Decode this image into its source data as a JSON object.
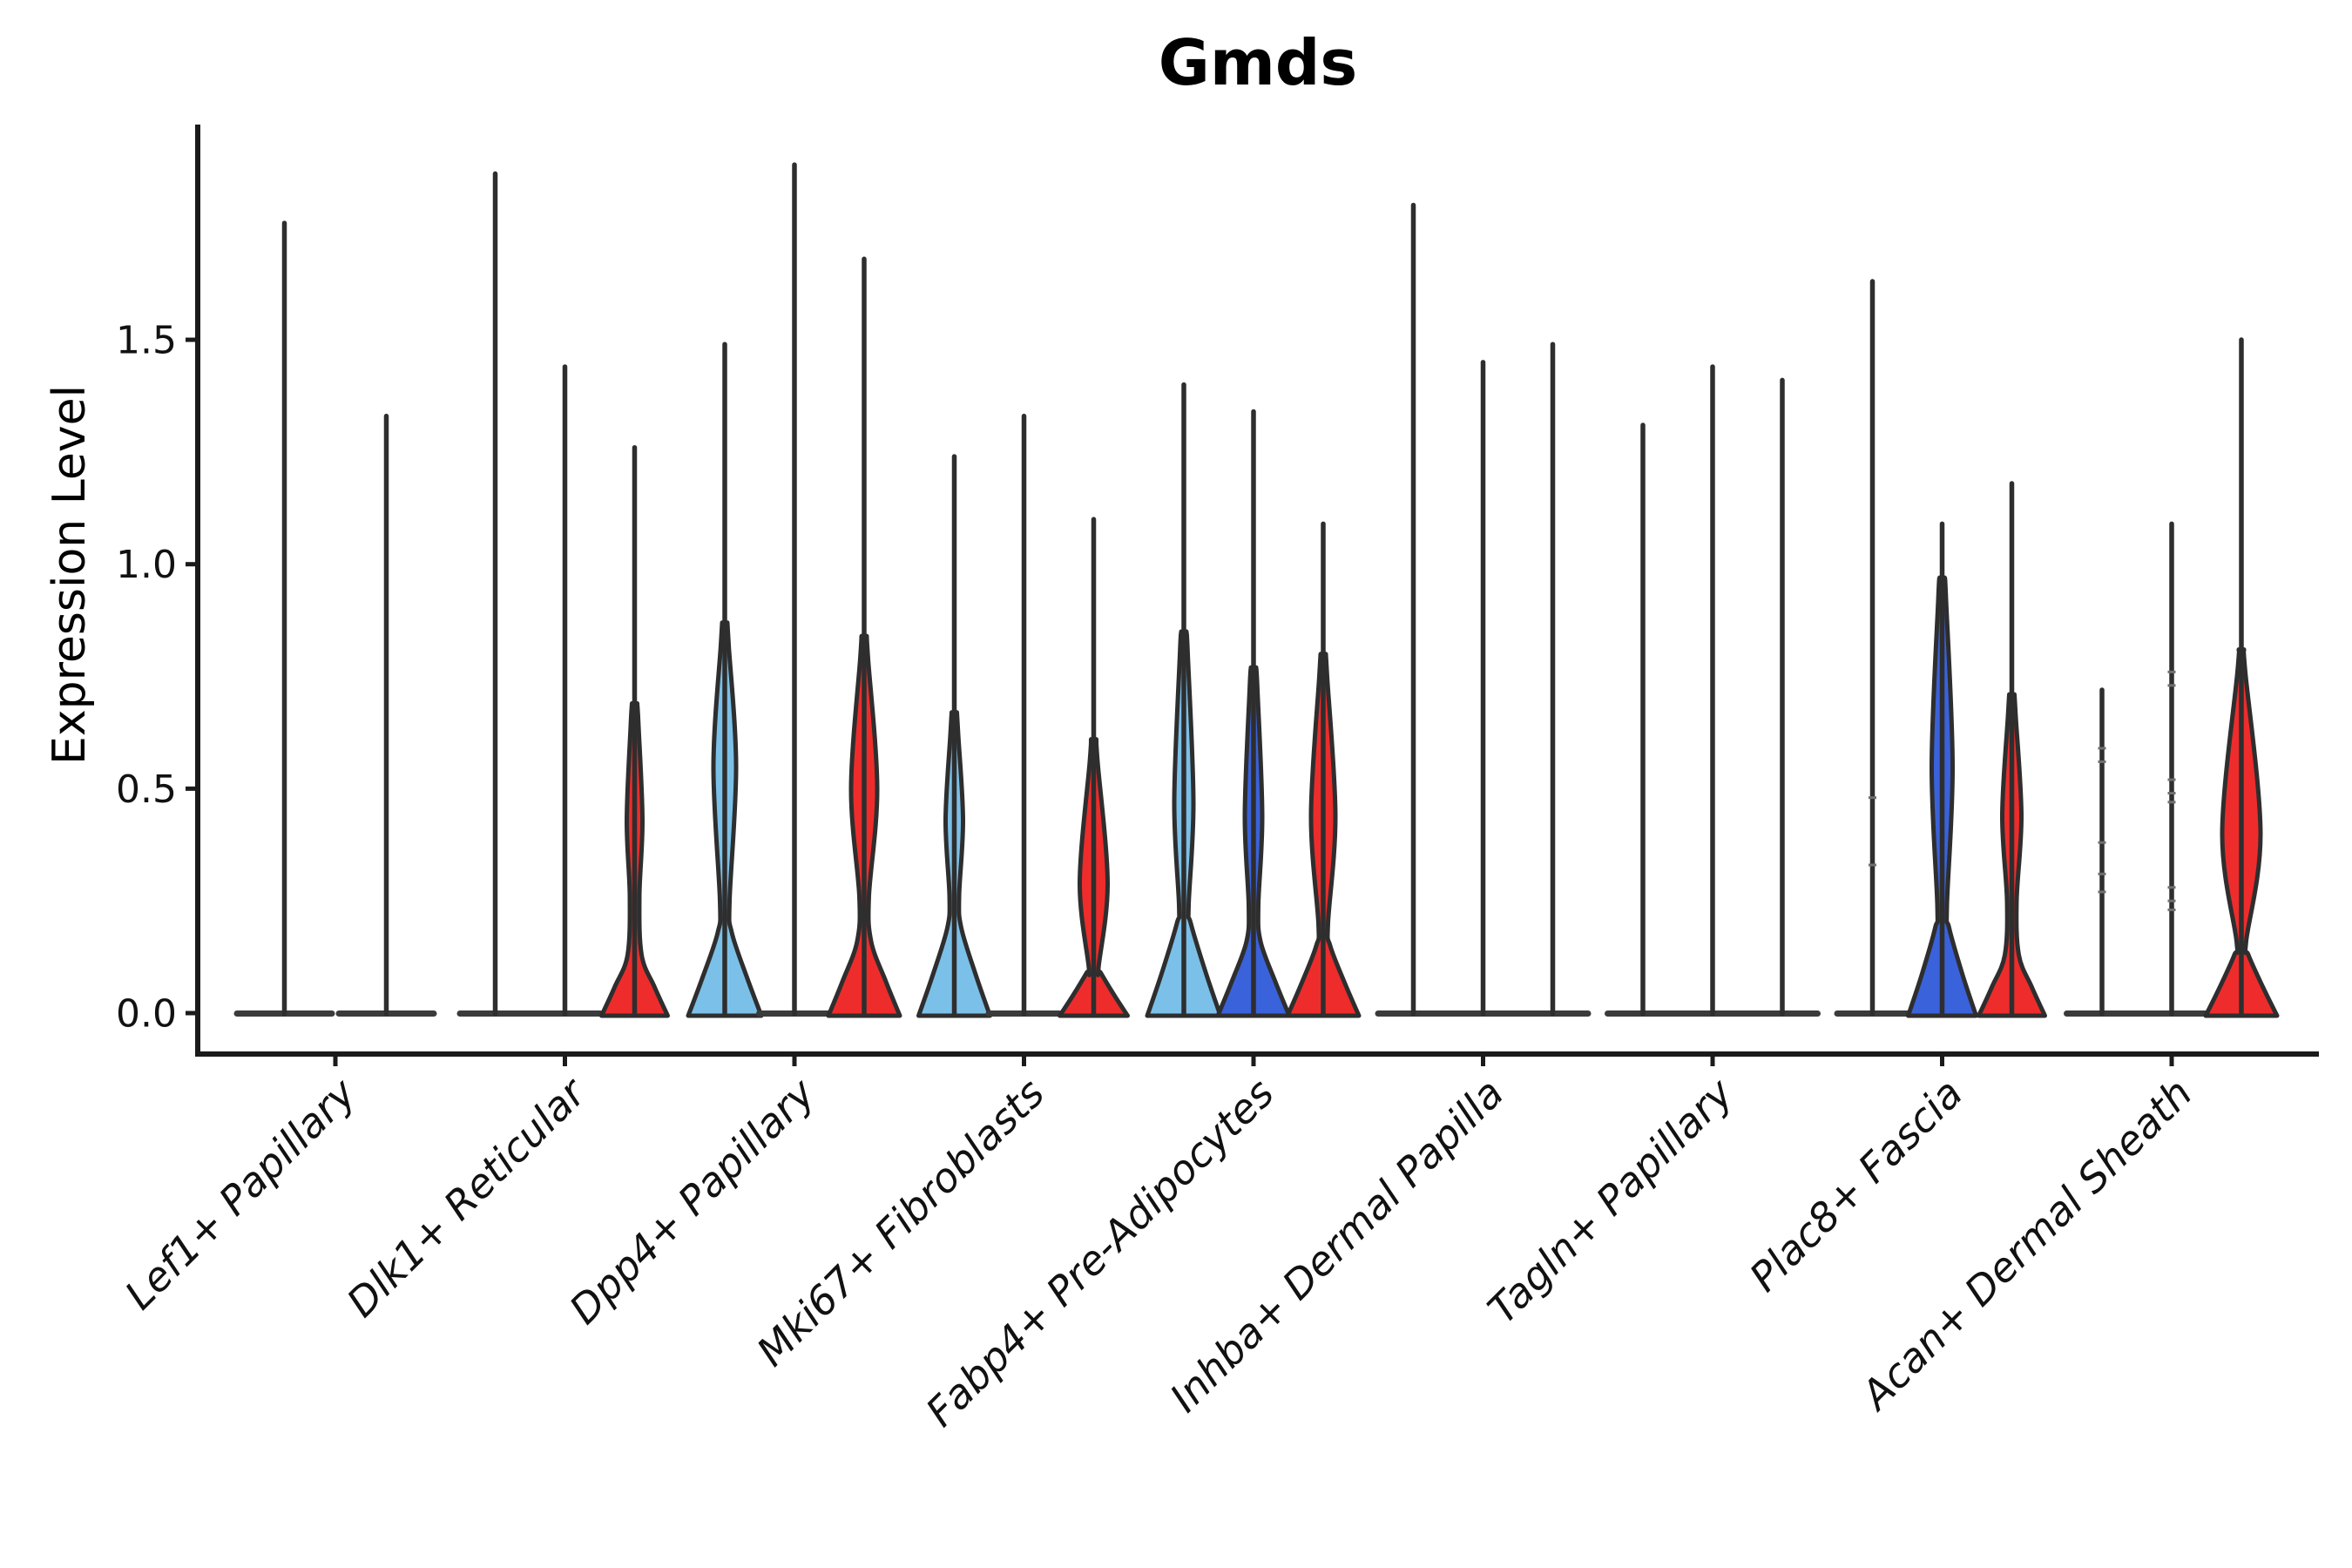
{
  "chart_data": {
    "type": "violin",
    "title": "Gmds",
    "ylabel": "Expression Level",
    "xlabel": "",
    "ytick_labels": [
      "0.0",
      "0.5",
      "1.0",
      "1.5"
    ],
    "ytick_values": [
      0,
      0.5,
      1.0,
      1.5
    ],
    "ylim": [
      -0.09,
      1.98
    ],
    "grid": false,
    "legend": "none",
    "palette": {
      "skyblue": "#7bc0e8",
      "royalblue": "#3a62da",
      "red": "#ee2c2c",
      "edge": "#2e2e2e",
      "pancake": "#3b3b3b",
      "spine": "#1b1b1b",
      "text": "#111111",
      "dash": "#6f6f6f"
    },
    "groups": [
      {
        "label": "Lef1+ Papillary",
        "violins": [
          {
            "color": "skyblue",
            "max": 1.76,
            "shape": "collapsed",
            "base_hw": 58,
            "dashes": []
          },
          {
            "color": "red",
            "max": 1.33,
            "shape": "collapsed",
            "base_hw": 58,
            "dashes": []
          }
        ]
      },
      {
        "label": "Dlk1+ Reticular",
        "violins": [
          {
            "color": "skyblue",
            "max": 1.87,
            "shape": "collapsed",
            "base_hw": 44,
            "dashes": []
          },
          {
            "color": "royalblue",
            "max": 1.44,
            "shape": "collapsed",
            "base_hw": 44,
            "dashes": []
          },
          {
            "color": "red",
            "max": 1.26,
            "shape": "bump",
            "base_hw": 38,
            "base_top": 0.13,
            "spindle": {
              "lo": 0.26,
              "peak": 0.43,
              "hi": 0.64,
              "hw": 9
            },
            "dashes": []
          }
        ]
      },
      {
        "label": "Dpp4+ Papillary",
        "violins": [
          {
            "color": "skyblue",
            "max": 1.49,
            "shape": "bump",
            "base_hw": 42,
            "base_top": 0.18,
            "spindle": {
              "lo": 0.25,
              "peak": 0.55,
              "hi": 0.82,
              "hw": 13
            },
            "dashes": []
          },
          {
            "color": "royalblue",
            "max": 1.89,
            "shape": "collapsed",
            "base_hw": 44,
            "dashes": []
          },
          {
            "color": "red",
            "max": 1.68,
            "shape": "bump",
            "base_hw": 41,
            "base_top": 0.16,
            "spindle": {
              "lo": 0.26,
              "peak": 0.5,
              "hi": 0.79,
              "hw": 15
            },
            "dashes": []
          }
        ]
      },
      {
        "label": "Mki67+ Fibroblasts",
        "violins": [
          {
            "color": "skyblue",
            "max": 1.24,
            "shape": "bump",
            "base_hw": 41,
            "base_top": 0.19,
            "spindle": {
              "lo": 0.26,
              "peak": 0.43,
              "hi": 0.62,
              "hw": 10
            },
            "dashes": []
          },
          {
            "color": "royalblue",
            "max": 1.33,
            "shape": "collapsed",
            "base_hw": 44,
            "dashes": []
          },
          {
            "color": "red",
            "max": 1.1,
            "shape": "bump",
            "base_hw": 39,
            "base_top": 0.09,
            "spindle": {
              "lo": 0.1,
              "peak": 0.29,
              "hi": 0.56,
              "hw": 16
            },
            "dashes": []
          }
        ]
      },
      {
        "label": "Fabp4+ Pre-Adipocytes",
        "violins": [
          {
            "color": "skyblue",
            "max": 1.4,
            "shape": "bump",
            "base_hw": 42,
            "base_top": 0.2,
            "spindle": {
              "lo": 0.24,
              "peak": 0.47,
              "hi": 0.8,
              "hw": 11
            },
            "dashes": []
          },
          {
            "color": "royalblue",
            "max": 1.34,
            "shape": "bump",
            "base_hw": 41,
            "base_top": 0.16,
            "spindle": {
              "lo": 0.24,
              "peak": 0.44,
              "hi": 0.72,
              "hw": 10
            },
            "dashes": []
          },
          {
            "color": "red",
            "max": 1.09,
            "shape": "bump",
            "base_hw": 41,
            "base_top": 0.15,
            "spindle": {
              "lo": 0.2,
              "peak": 0.44,
              "hi": 0.75,
              "hw": 14
            },
            "dashes": []
          }
        ]
      },
      {
        "label": "Inhba+ Dermal Papilla",
        "violins": [
          {
            "color": "skyblue",
            "max": 1.8,
            "shape": "collapsed",
            "base_hw": 44,
            "dashes": []
          },
          {
            "color": "royalblue",
            "max": 1.45,
            "shape": "collapsed",
            "base_hw": 44,
            "dashes": []
          },
          {
            "color": "red",
            "max": 1.49,
            "shape": "collapsed",
            "base_hw": 44,
            "dashes": []
          }
        ]
      },
      {
        "label": "Tagln+ Papillary",
        "violins": [
          {
            "color": "skyblue",
            "max": 1.31,
            "shape": "collapsed",
            "base_hw": 44,
            "dashes": []
          },
          {
            "color": "royalblue",
            "max": 1.44,
            "shape": "collapsed",
            "base_hw": 44,
            "dashes": []
          },
          {
            "color": "red",
            "max": 1.41,
            "shape": "collapsed",
            "base_hw": 44,
            "dashes": []
          }
        ]
      },
      {
        "label": "Plac8+ Fascia",
        "violins": [
          {
            "color": "skyblue",
            "max": 1.63,
            "shape": "collapsed",
            "base_hw": 44,
            "dashes": [
              0.48,
              0.33
            ]
          },
          {
            "color": "royalblue",
            "max": 1.09,
            "shape": "bump",
            "base_hw": 39,
            "base_top": 0.19,
            "spindle": {
              "lo": 0.24,
              "peak": 0.55,
              "hi": 0.92,
              "hw": 12
            },
            "dashes": []
          },
          {
            "color": "red",
            "max": 1.18,
            "shape": "bump",
            "base_hw": 38,
            "base_top": 0.13,
            "spindle": {
              "lo": 0.25,
              "peak": 0.44,
              "hi": 0.66,
              "hw": 11
            },
            "dashes": []
          }
        ]
      },
      {
        "label": "Acan+ Dermal Sheath",
        "violins": [
          {
            "color": "skyblue",
            "max": 0.72,
            "shape": "collapsed",
            "base_hw": 44,
            "dashes": [
              0.27,
              0.31,
              0.38,
              0.56,
              0.59
            ]
          },
          {
            "color": "royalblue",
            "max": 1.09,
            "shape": "collapsed",
            "base_hw": 44,
            "dashes": [
              0.23,
              0.25,
              0.28,
              0.47,
              0.49,
              0.52,
              0.73,
              0.76
            ]
          },
          {
            "color": "red",
            "max": 1.5,
            "shape": "bump",
            "base_hw": 41,
            "base_top": 0.13,
            "spindle": {
              "lo": 0.16,
              "peak": 0.4,
              "hi": 0.76,
              "hw": 22
            },
            "dashes": []
          }
        ]
      }
    ]
  }
}
